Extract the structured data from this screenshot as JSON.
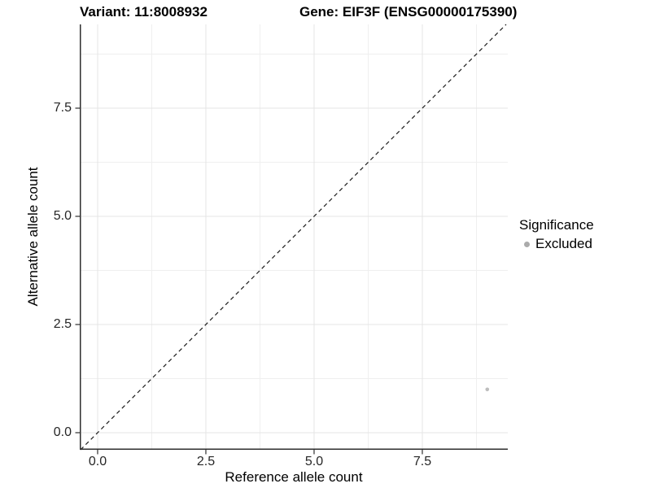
{
  "chart_data": {
    "type": "scatter",
    "title_left": "Variant: 11:8008932",
    "title_right": "Gene: EIF3F (ENSG00000175390)",
    "xlabel": "Reference allele count",
    "ylabel": "Alternative allele count",
    "xlim": [
      -0.413,
      9.474
    ],
    "ylim": [
      -0.395,
      9.436
    ],
    "ticks": {
      "x": [
        {
          "value": 0.0,
          "label": "0.0"
        },
        {
          "value": 2.5,
          "label": "2.5"
        },
        {
          "value": 5.0,
          "label": "5.0"
        },
        {
          "value": 7.5,
          "label": "7.5"
        }
      ],
      "y": [
        {
          "value": 0.0,
          "label": "0.0"
        },
        {
          "value": 2.5,
          "label": "2.5"
        },
        {
          "value": 5.0,
          "label": "5.0"
        },
        {
          "value": 7.5,
          "label": "7.5"
        }
      ],
      "minor": [
        1.25,
        3.75,
        6.25,
        8.75
      ]
    },
    "grid": true,
    "series": [
      {
        "name": "Excluded",
        "color": "#bdbdbd",
        "point_radius": 2.3,
        "points": [
          {
            "x": 9,
            "y": 1
          }
        ]
      }
    ],
    "reference_line": {
      "type": "identity",
      "equation": "y = x",
      "style": "dashed",
      "color": "#1a1a1a"
    },
    "legend": {
      "title": "Significance",
      "position": "right",
      "entries": [
        {
          "label": "Excluded",
          "color": "#ababab"
        }
      ]
    },
    "colors": {
      "background": "#ffffff",
      "grid_major": "#e5e5e5",
      "grid_minor": "#efefef",
      "axis_line": "#2e2e2e",
      "tick_text": "#262626"
    }
  }
}
